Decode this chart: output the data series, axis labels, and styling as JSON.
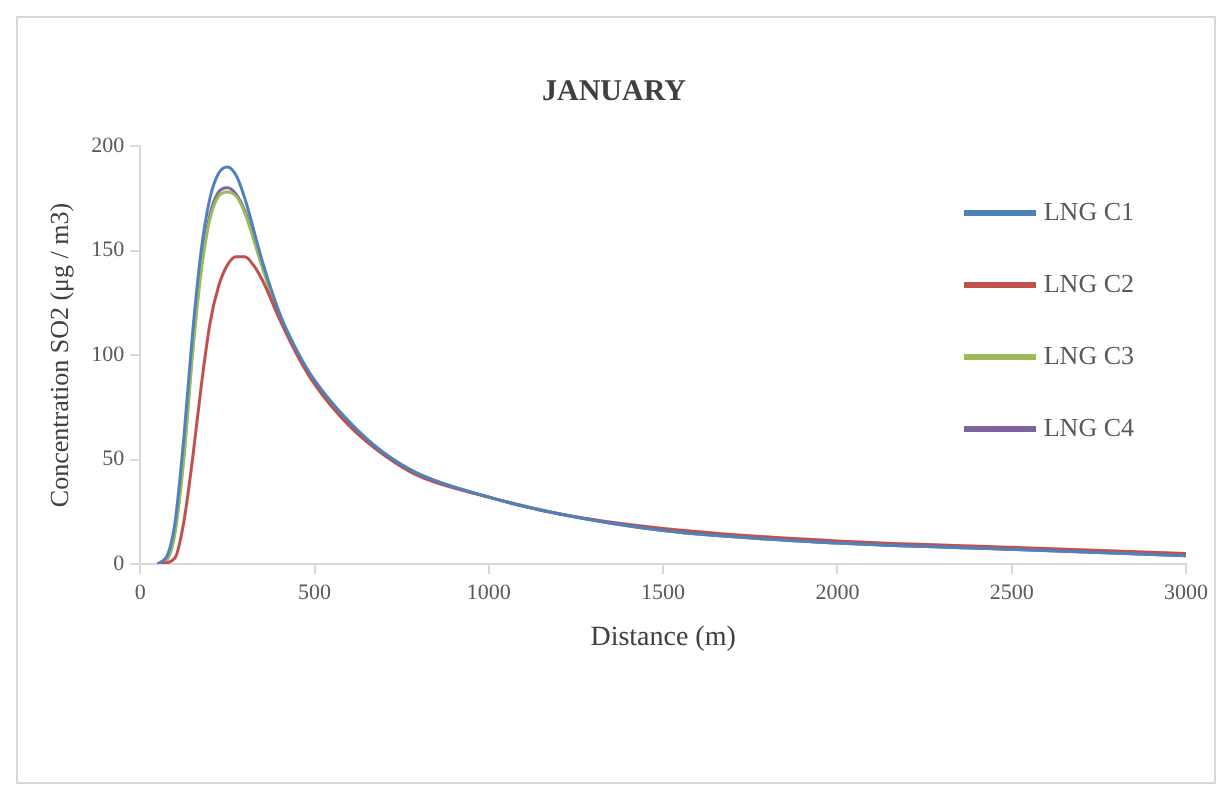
{
  "chart_data": {
    "type": "line",
    "title": "JANUARY",
    "xlabel": "Distance (m)",
    "ylabel": "Concentration SO2 (μg / m3)",
    "xlim": [
      0,
      3000
    ],
    "xticks": [
      0,
      500,
      1000,
      1500,
      2000,
      2500,
      3000
    ],
    "ylim": [
      0,
      200
    ],
    "yticks": [
      0,
      50,
      100,
      150,
      200
    ],
    "grid": false,
    "legend": "top right",
    "marker": "none",
    "line_style": "solid",
    "series": [
      {
        "name": "LNG C1",
        "color": "#4f81bd",
        "x": [
          50,
          80,
          100,
          125,
          150,
          175,
          200,
          225,
          250,
          275,
          300,
          350,
          400,
          450,
          500,
          600,
          700,
          800,
          1000,
          1200,
          1500,
          2000,
          2500,
          3000
        ],
        "values": [
          0,
          5,
          20,
          60,
          110,
          150,
          175,
          187,
          190,
          186,
          175,
          145,
          120,
          102,
          88,
          68,
          53,
          43,
          32,
          24,
          16,
          10,
          7,
          4
        ]
      },
      {
        "name": "LNG C2",
        "color": "#c0504d",
        "x": [
          60,
          100,
          125,
          150,
          175,
          200,
          225,
          250,
          275,
          300,
          325,
          350,
          400,
          450,
          500,
          600,
          700,
          800,
          1000,
          1200,
          1500,
          2000,
          2500,
          3000
        ],
        "values": [
          0,
          3,
          20,
          50,
          85,
          115,
          133,
          143,
          147,
          147,
          143,
          136,
          117,
          100,
          86,
          66,
          52,
          42,
          32,
          24,
          17,
          11,
          8,
          5
        ]
      },
      {
        "name": "LNG C3",
        "color": "#9bbb59",
        "x": [
          50,
          80,
          100,
          125,
          150,
          175,
          200,
          225,
          250,
          275,
          300,
          350,
          400,
          450,
          500,
          600,
          700,
          800,
          1000,
          1200
        ],
        "values": [
          0,
          3,
          15,
          50,
          100,
          140,
          165,
          176,
          178,
          176,
          168,
          142,
          118,
          101,
          87,
          67,
          53,
          43,
          32,
          24
        ]
      },
      {
        "name": "LNG C4",
        "color": "#8064a2",
        "x": [
          50,
          80,
          100,
          125,
          150,
          175,
          200,
          225,
          250,
          275,
          300,
          350,
          400,
          450,
          500,
          600,
          700,
          800,
          1000,
          1200,
          1500,
          2000,
          2500,
          3000
        ],
        "values": [
          0,
          3,
          16,
          52,
          102,
          142,
          167,
          178,
          180,
          177,
          169,
          143,
          119,
          101,
          87,
          67,
          53,
          43,
          32,
          24,
          16,
          10,
          7,
          4
        ]
      }
    ]
  }
}
